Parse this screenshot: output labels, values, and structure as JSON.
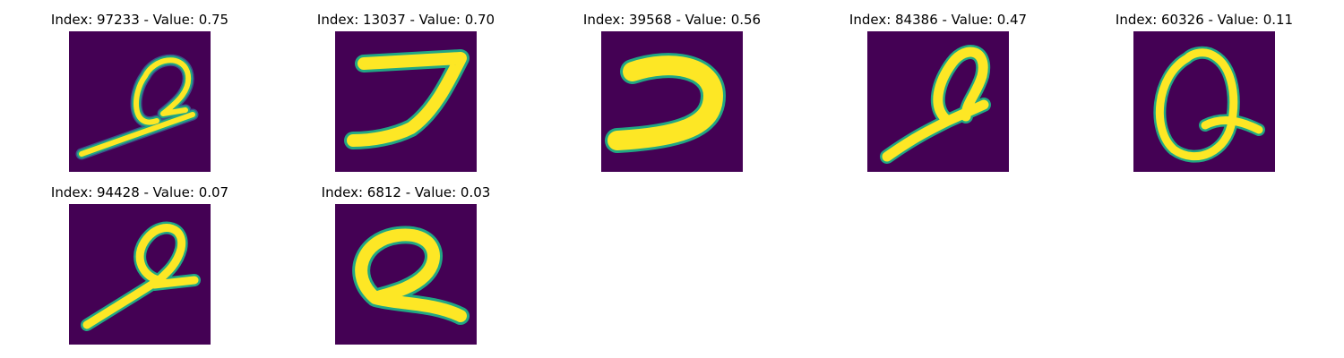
{
  "colors": {
    "background": "#440154",
    "stroke_core": "#fde725",
    "stroke_edge": "#21a784",
    "stroke_outer": "#3b528b"
  },
  "panels": [
    {
      "title": "Index: 97233 - Value: 0.75",
      "glyph": "digit-2-loop-long-tail"
    },
    {
      "title": "Index: 13037 - Value: 0.70",
      "glyph": "digit-7"
    },
    {
      "title": "Index: 39568 - Value: 0.56",
      "glyph": "hook-stroke"
    },
    {
      "title": "Index: 84386 - Value: 0.47",
      "glyph": "digit-2-loop-thick"
    },
    {
      "title": "Index: 60326 - Value: 0.11",
      "glyph": "digit-q-shape"
    },
    {
      "title": "Index: 94428 - Value: 0.07",
      "glyph": "digit-2-loop-cross"
    },
    {
      "title": "Index: 6812 - Value: 0.03",
      "glyph": "digit-2-wide-loop"
    }
  ]
}
